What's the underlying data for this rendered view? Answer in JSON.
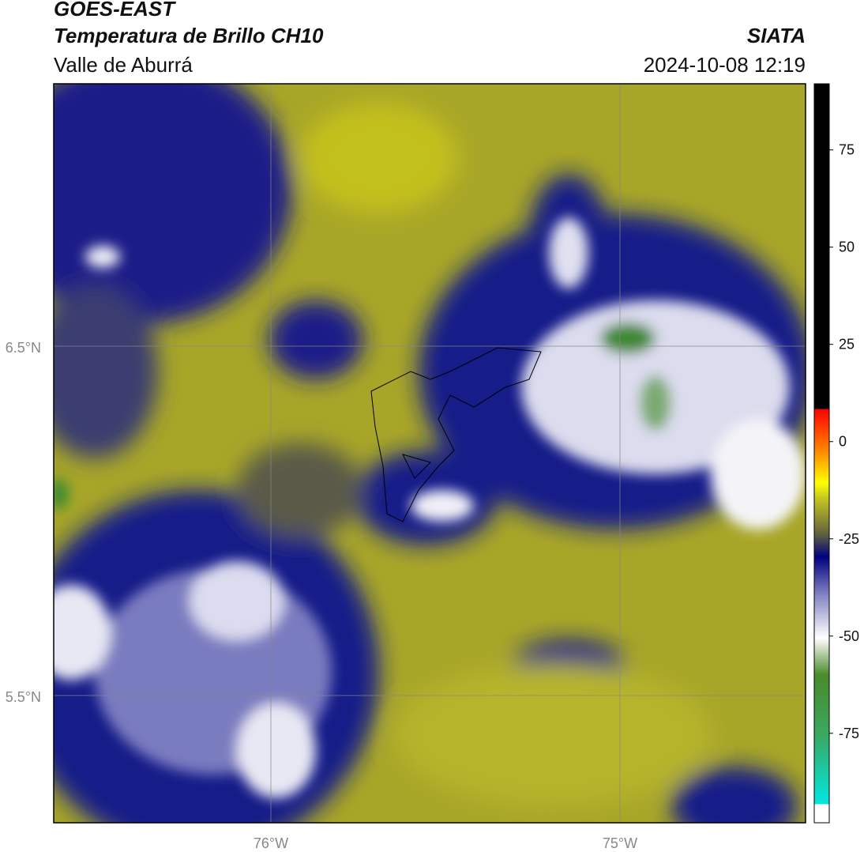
{
  "header": {
    "title": "GOES-EAST",
    "subtitle": "Temperatura de Brillo CH10",
    "region": "Valle de Aburrá",
    "source": "SIATA",
    "datetime": "2024-10-08 12:19"
  },
  "map": {
    "lat_labels": [
      "6.5°N",
      "5.5°N"
    ],
    "lon_labels": [
      "76°W",
      "75°W"
    ]
  },
  "colorbar": {
    "limits": [
      -98,
      92
    ],
    "ticks": [
      75,
      50,
      25,
      0,
      -25,
      -50,
      -75
    ]
  }
}
